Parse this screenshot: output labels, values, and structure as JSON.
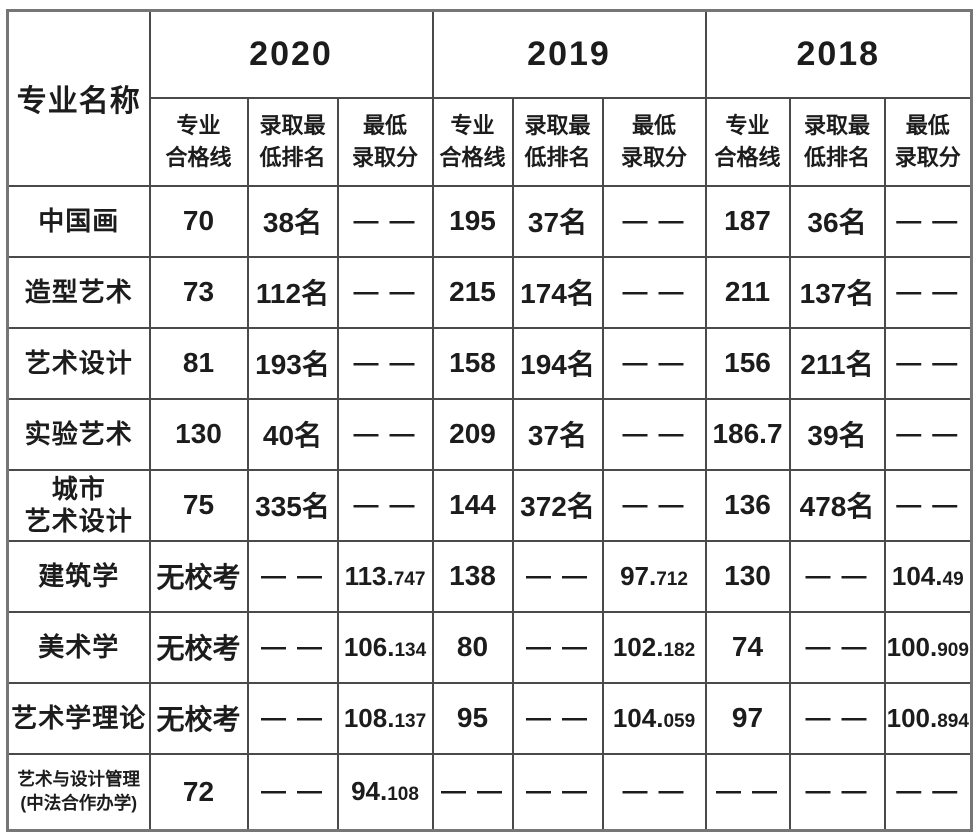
{
  "table": {
    "corner": "专业名称",
    "years": [
      "2020",
      "2019",
      "2018"
    ],
    "sub_headers": [
      "专业\n合格线",
      "录取最\n低排名",
      "最低\n录取分"
    ],
    "rows": [
      {
        "major": "中国画",
        "values": [
          "70",
          "38名",
          "— —",
          "195",
          "37名",
          "— —",
          "187",
          "36名",
          "— —"
        ]
      },
      {
        "major": "造型艺术",
        "values": [
          "73",
          "112名",
          "— —",
          "215",
          "174名",
          "— —",
          "211",
          "137名",
          "— —"
        ]
      },
      {
        "major": "艺术设计",
        "values": [
          "81",
          "193名",
          "— —",
          "158",
          "194名",
          "— —",
          "156",
          "211名",
          "— —"
        ]
      },
      {
        "major": "实验艺术",
        "values": [
          "130",
          "40名",
          "— —",
          "209",
          "37名",
          "— —",
          "186.7",
          "39名",
          "— —"
        ]
      },
      {
        "major": "城市\n艺术设计",
        "values": [
          "75",
          "335名",
          "— —",
          "144",
          "372名",
          "— —",
          "136",
          "478名",
          "— —"
        ]
      },
      {
        "major": "建筑学",
        "values": [
          "无校考",
          "— —",
          "113.747",
          "138",
          "— —",
          "97.712",
          "130",
          "— —",
          "104.49"
        ]
      },
      {
        "major": "美术学",
        "values": [
          "无校考",
          "— —",
          "106.134",
          "80",
          "— —",
          "102.182",
          "74",
          "— —",
          "100.909"
        ]
      },
      {
        "major": "艺术学理论",
        "values": [
          "无校考",
          "— —",
          "108.137",
          "95",
          "— —",
          "104.059",
          "97",
          "— —",
          "100.894"
        ]
      },
      {
        "major": "艺术与设计管理\n(中法合作办学)",
        "values": [
          "72",
          "— —",
          "94.108",
          "— —",
          "— —",
          "— —",
          "— —",
          "— —",
          "— —"
        ]
      }
    ]
  }
}
